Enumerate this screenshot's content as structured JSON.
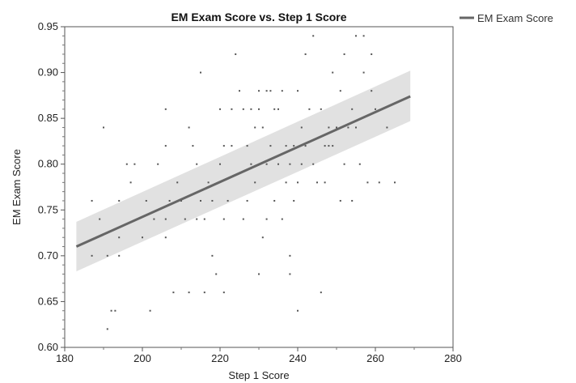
{
  "chart_data": {
    "type": "scatter",
    "title": "EM Exam Score vs. Step 1 Score",
    "xlabel": "Step 1 Score",
    "ylabel": "EM Exam Score",
    "xlim": [
      180,
      280
    ],
    "ylim": [
      0.6,
      0.95
    ],
    "xticks": [
      "180",
      "200",
      "220",
      "240",
      "260",
      "280"
    ],
    "yticks": [
      "0.60",
      "0.65",
      "0.70",
      "0.75",
      "0.80",
      "0.85",
      "0.90",
      "0.95"
    ],
    "grid": false,
    "legend": {
      "position": "top-right",
      "entries": [
        "EM Exam Score"
      ]
    },
    "colors": {
      "line": "#666666",
      "band": "#dcdcdc",
      "points": "#555555"
    },
    "fit": {
      "x": [
        183,
        269
      ],
      "y": [
        0.71,
        0.874
      ],
      "band_lower": [
        0.683,
        0.847
      ],
      "band_upper": [
        0.737,
        0.902
      ]
    },
    "points": [
      [
        187,
        0.76
      ],
      [
        187,
        0.7
      ],
      [
        189,
        0.74
      ],
      [
        190,
        0.84
      ],
      [
        191,
        0.7
      ],
      [
        191,
        0.62
      ],
      [
        192,
        0.64
      ],
      [
        193,
        0.64
      ],
      [
        194,
        0.76
      ],
      [
        194,
        0.72
      ],
      [
        194,
        0.7
      ],
      [
        196,
        0.8
      ],
      [
        197,
        0.78
      ],
      [
        198,
        0.8
      ],
      [
        200,
        0.72
      ],
      [
        201,
        0.76
      ],
      [
        202,
        0.64
      ],
      [
        203,
        0.74
      ],
      [
        204,
        0.8
      ],
      [
        206,
        0.86
      ],
      [
        206,
        0.82
      ],
      [
        206,
        0.74
      ],
      [
        206,
        0.72
      ],
      [
        207,
        0.76
      ],
      [
        208,
        0.66
      ],
      [
        209,
        0.78
      ],
      [
        210,
        0.76
      ],
      [
        211,
        0.74
      ],
      [
        212,
        0.84
      ],
      [
        212,
        0.66
      ],
      [
        213,
        0.82
      ],
      [
        214,
        0.8
      ],
      [
        214,
        0.74
      ],
      [
        215,
        0.9
      ],
      [
        215,
        0.76
      ],
      [
        216,
        0.74
      ],
      [
        216,
        0.66
      ],
      [
        217,
        0.78
      ],
      [
        218,
        0.7
      ],
      [
        218,
        0.76
      ],
      [
        219,
        0.68
      ],
      [
        220,
        0.86
      ],
      [
        220,
        0.8
      ],
      [
        221,
        0.82
      ],
      [
        221,
        0.74
      ],
      [
        221,
        0.66
      ],
      [
        222,
        0.76
      ],
      [
        223,
        0.86
      ],
      [
        223,
        0.82
      ],
      [
        224,
        0.92
      ],
      [
        225,
        0.88
      ],
      [
        226,
        0.86
      ],
      [
        226,
        0.74
      ],
      [
        227,
        0.82
      ],
      [
        227,
        0.76
      ],
      [
        228,
        0.86
      ],
      [
        228,
        0.8
      ],
      [
        229,
        0.84
      ],
      [
        229,
        0.78
      ],
      [
        230,
        0.88
      ],
      [
        230,
        0.86
      ],
      [
        230,
        0.68
      ],
      [
        231,
        0.72
      ],
      [
        231,
        0.84
      ],
      [
        232,
        0.88
      ],
      [
        232,
        0.8
      ],
      [
        232,
        0.74
      ],
      [
        233,
        0.88
      ],
      [
        233,
        0.82
      ],
      [
        234,
        0.86
      ],
      [
        234,
        0.76
      ],
      [
        235,
        0.86
      ],
      [
        235,
        0.8
      ],
      [
        236,
        0.88
      ],
      [
        236,
        0.74
      ],
      [
        237,
        0.78
      ],
      [
        237,
        0.82
      ],
      [
        238,
        0.7
      ],
      [
        238,
        0.8
      ],
      [
        238,
        0.68
      ],
      [
        239,
        0.82
      ],
      [
        239,
        0.76
      ],
      [
        240,
        0.64
      ],
      [
        240,
        0.78
      ],
      [
        240,
        0.88
      ],
      [
        241,
        0.84
      ],
      [
        241,
        0.8
      ],
      [
        242,
        0.92
      ],
      [
        242,
        0.82
      ],
      [
        243,
        0.86
      ],
      [
        244,
        0.94
      ],
      [
        244,
        0.8
      ],
      [
        245,
        0.78
      ],
      [
        246,
        0.86
      ],
      [
        246,
        0.66
      ],
      [
        247,
        0.82
      ],
      [
        247,
        0.78
      ],
      [
        248,
        0.84
      ],
      [
        248,
        0.82
      ],
      [
        249,
        0.9
      ],
      [
        249,
        0.82
      ],
      [
        250,
        0.84
      ],
      [
        251,
        0.76
      ],
      [
        251,
        0.88
      ],
      [
        252,
        0.92
      ],
      [
        252,
        0.8
      ],
      [
        253,
        0.84
      ],
      [
        254,
        0.76
      ],
      [
        254,
        0.86
      ],
      [
        255,
        0.84
      ],
      [
        255,
        0.94
      ],
      [
        256,
        0.8
      ],
      [
        257,
        0.94
      ],
      [
        257,
        0.9
      ],
      [
        258,
        0.78
      ],
      [
        259,
        0.92
      ],
      [
        259,
        0.88
      ],
      [
        260,
        0.86
      ],
      [
        261,
        0.78
      ],
      [
        263,
        0.84
      ],
      [
        265,
        0.78
      ]
    ]
  }
}
